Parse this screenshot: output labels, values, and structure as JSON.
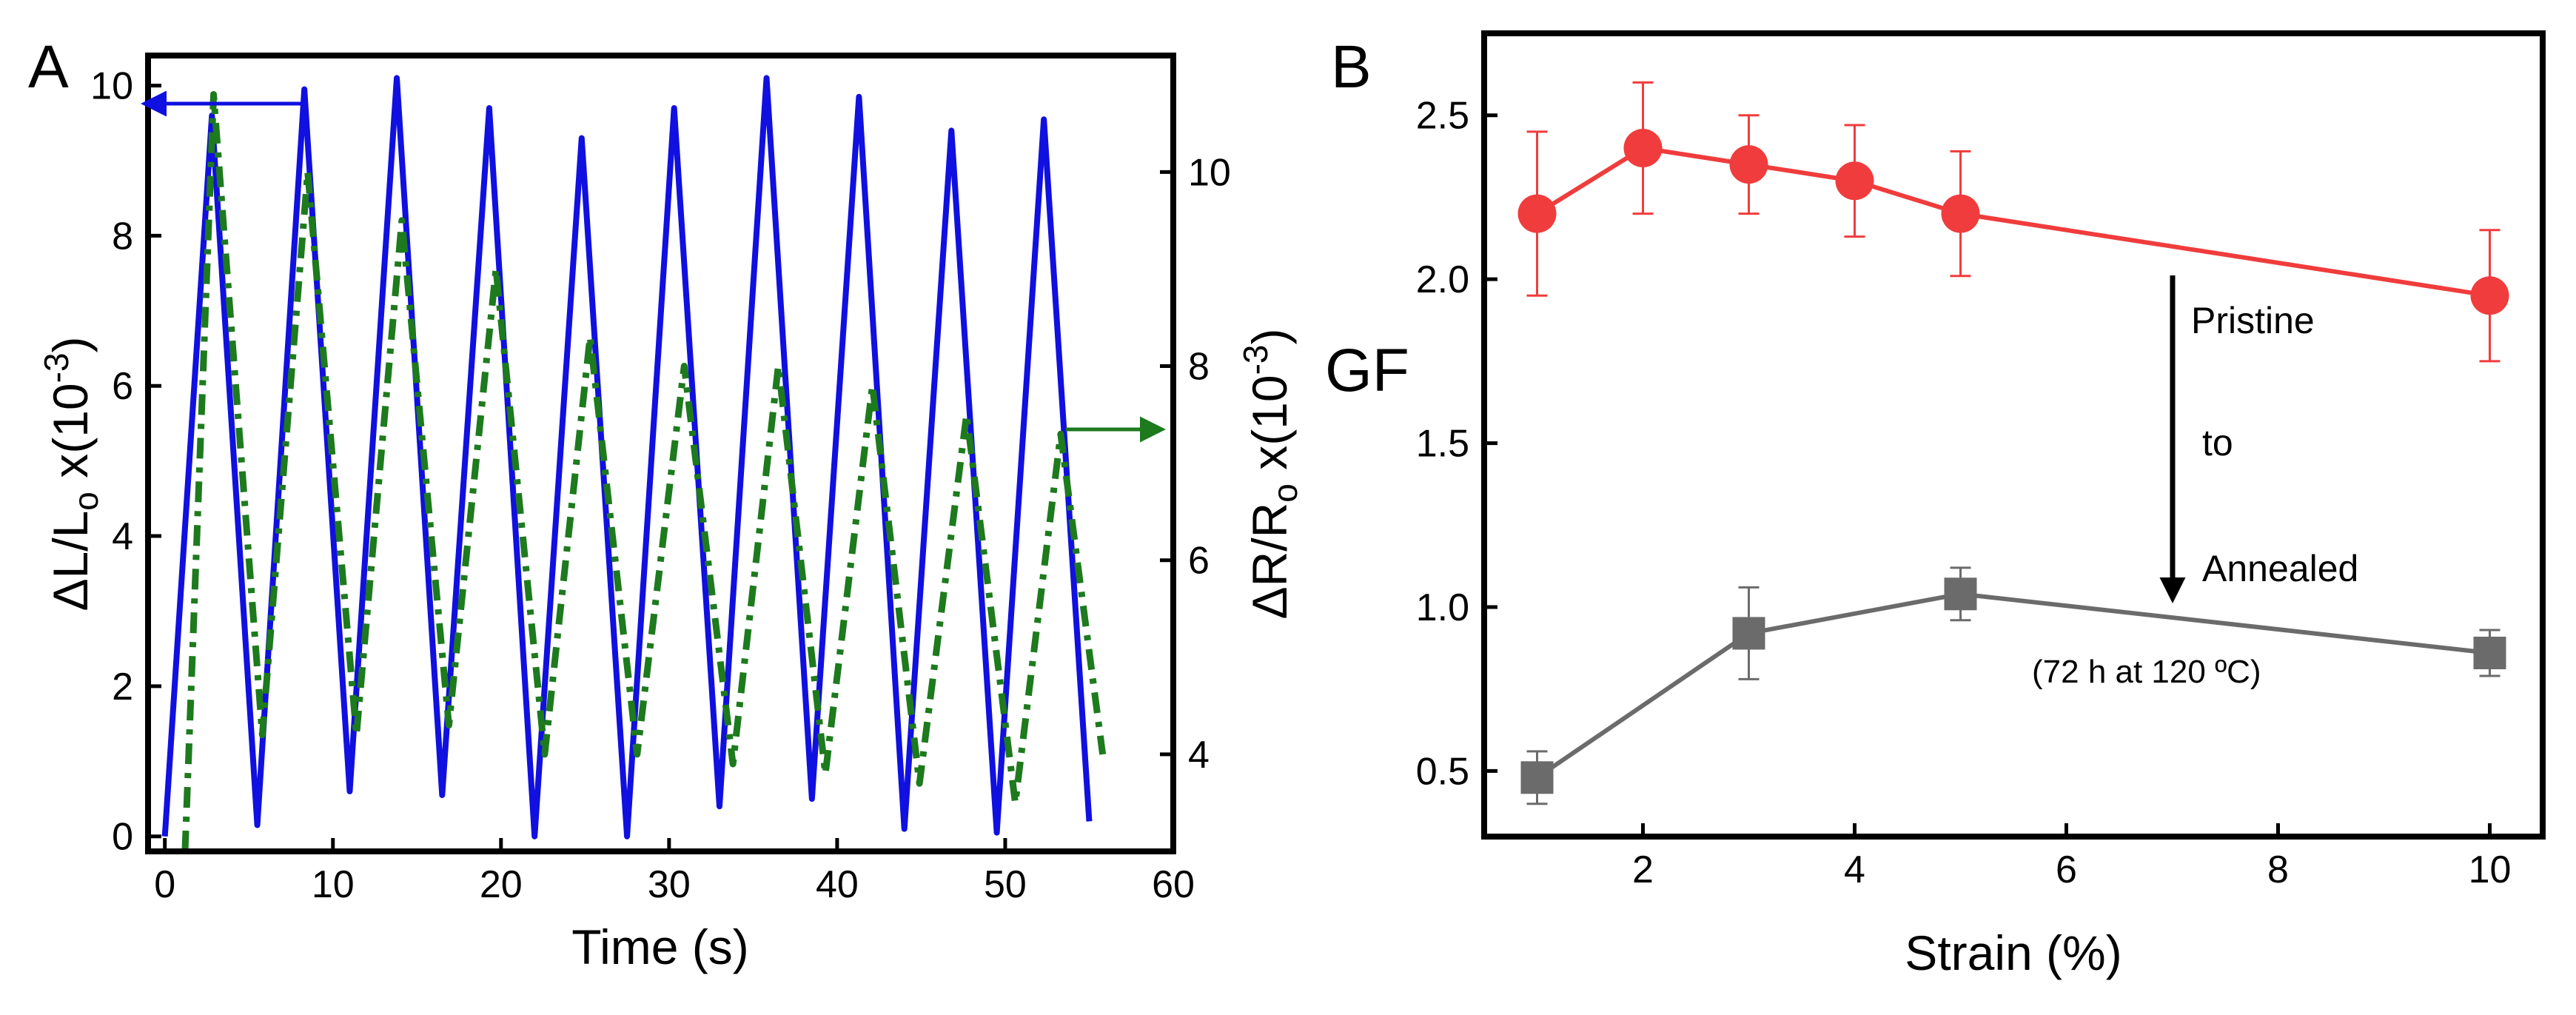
{
  "chart_data": [
    {
      "panel_label": "A",
      "type": "line",
      "xlabel": "Time (s)",
      "ylabel_left": {
        "base": "ΔL/L",
        "sub": "o",
        "mid": " x(10",
        "sup": "-3",
        "end": ")"
      },
      "ylabel_right": {
        "base": "ΔR/R",
        "sub": "o",
        "mid": " x(10",
        "sup": "-3",
        "end": ")"
      },
      "xlim": [
        -1,
        60
      ],
      "ylim_left": [
        -0.2,
        10.4
      ],
      "ylim_right": [
        3.0,
        11.2
      ],
      "xticks": [
        0,
        10,
        20,
        30,
        40,
        50,
        60
      ],
      "yticks_left": [
        0,
        2,
        4,
        6,
        8,
        10
      ],
      "yticks_right": [
        4,
        6,
        8,
        10
      ],
      "series": [
        {
          "axis": "left",
          "color": "#1010e0",
          "style": "solid",
          "x": [
            0,
            2.8,
            5.5,
            8.3,
            11,
            13.8,
            16.5,
            19.3,
            22,
            24.8,
            27.5,
            30.3,
            33,
            35.8,
            38.5,
            41.3,
            44,
            46.8,
            49.5,
            52.3,
            55
          ],
          "y": [
            0,
            9.6,
            0.15,
            9.95,
            0.6,
            10.1,
            0.55,
            9.7,
            0,
            9.3,
            0,
            9.7,
            0.4,
            10.1,
            0.5,
            9.85,
            0.1,
            9.4,
            0.05,
            9.55,
            0.2
          ]
        },
        {
          "axis": "right",
          "color": "#1d7a1d",
          "style": "dashdot",
          "x": [
            1.2,
            2.9,
            5.8,
            8.5,
            11.4,
            14.1,
            16.9,
            19.7,
            22.6,
            25.3,
            28.1,
            30.9,
            33.8,
            36.5,
            39.3,
            42.1,
            44.9,
            47.7,
            50.6,
            53.3,
            55.8
          ],
          "y": [
            3,
            10.8,
            4.2,
            10,
            4.2,
            9.5,
            4.3,
            9.0,
            4.0,
            8.3,
            4.0,
            8.0,
            3.9,
            8.0,
            3.8,
            7.8,
            3.7,
            7.5,
            3.5,
            7.3,
            4.0
          ]
        }
      ],
      "annotations": [
        "left-pointing blue arrow near top-left",
        "right-pointing green arrow near right axis"
      ]
    },
    {
      "panel_label": "B",
      "type": "line",
      "xlabel": "Strain (%)",
      "ylabel": "GF",
      "xlim": [
        0.5,
        10.5
      ],
      "ylim": [
        0.3,
        2.75
      ],
      "xticks": [
        2,
        4,
        6,
        8,
        10
      ],
      "yticks": [
        0.5,
        1.0,
        1.5,
        2.0,
        2.5
      ],
      "series": [
        {
          "color": "#f03c3c",
          "marker": "circle",
          "x": [
            1,
            2,
            3,
            4,
            5,
            10
          ],
          "y": [
            2.2,
            2.4,
            2.35,
            2.3,
            2.2,
            1.95
          ],
          "err": [
            0.25,
            0.2,
            0.15,
            0.17,
            0.19,
            0.2
          ]
        },
        {
          "color": "#6b6b6b",
          "marker": "square",
          "x": [
            1,
            3,
            5,
            10
          ],
          "y": [
            0.48,
            0.92,
            1.04,
            0.86
          ],
          "err": [
            0.08,
            0.14,
            0.08,
            0.07
          ]
        }
      ],
      "annotation_lines": [
        "Pristine",
        "to",
        "Annealed"
      ],
      "annotation_note": "(72 h at 120 ºC)"
    }
  ]
}
